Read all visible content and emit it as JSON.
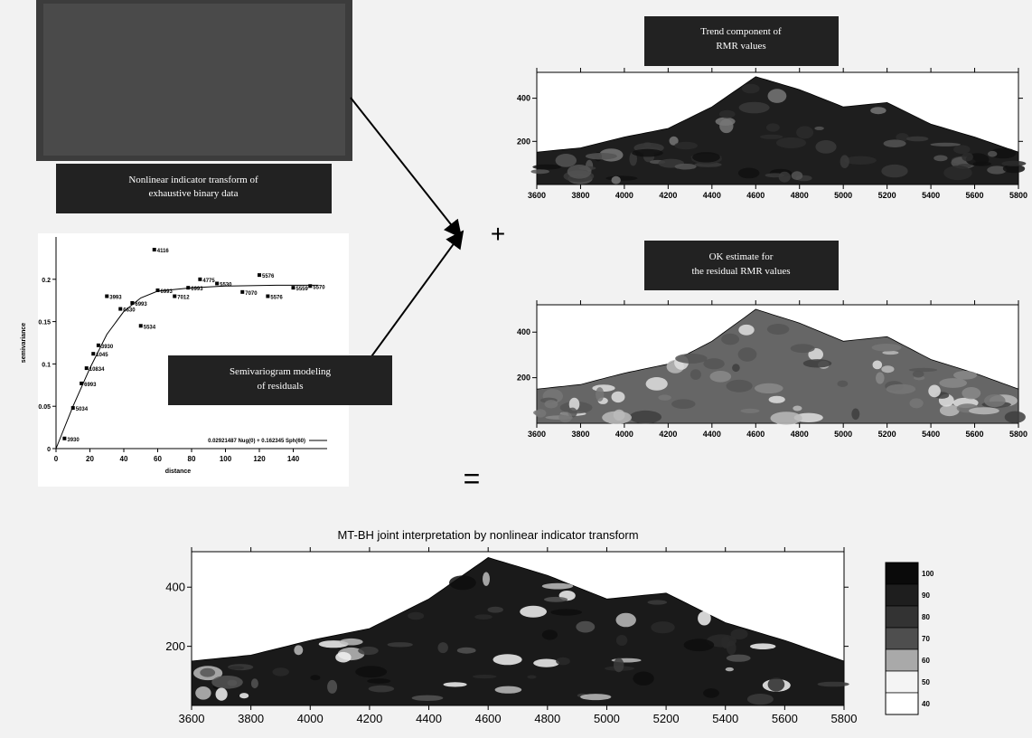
{
  "boxes": {
    "cover_upper_line": "",
    "cover_lower_line": "",
    "indicator_line1": "Nonlinear indicator transform of",
    "indicator_line2": "exhaustive binary data",
    "trend_line1": "Trend component of",
    "trend_line2": "RMR values",
    "ok_line1": "OK estimate for",
    "ok_line2": "the residual RMR values",
    "semivariogram_line1": "Semivariogram modeling",
    "semivariogram_line2": "of residuals"
  },
  "operators": {
    "plus": "+",
    "equals": "="
  },
  "colors": {
    "dark": "#1a1a1a",
    "mid": "#5e5e5e",
    "light": "#e9e9e9",
    "label_box": "#222222"
  },
  "chart_data": [
    {
      "type": "scatter",
      "panel": "semivariogram",
      "title": "",
      "xlabel": "distance",
      "ylabel": "semivariance",
      "xlim": [
        0,
        160
      ],
      "ylim": [
        0,
        0.25
      ],
      "xticks": [
        0,
        20,
        40,
        60,
        80,
        100,
        120,
        140
      ],
      "yticks": [
        0,
        0.05,
        0.1,
        0.15,
        0.2
      ],
      "ytick_labels": [
        "0",
        "0.05",
        "0.1",
        "0.15",
        "0.2"
      ],
      "points": [
        {
          "x": 5,
          "y": 0.012,
          "label": "3930"
        },
        {
          "x": 10,
          "y": 0.048,
          "label": "5034"
        },
        {
          "x": 15,
          "y": 0.077,
          "label": "6993"
        },
        {
          "x": 18,
          "y": 0.095,
          "label": "10834"
        },
        {
          "x": 22,
          "y": 0.112,
          "label": "1045"
        },
        {
          "x": 25,
          "y": 0.122,
          "label": "3930"
        },
        {
          "x": 30,
          "y": 0.18,
          "label": "3993"
        },
        {
          "x": 38,
          "y": 0.165,
          "label": "6630"
        },
        {
          "x": 45,
          "y": 0.172,
          "label": "6993"
        },
        {
          "x": 50,
          "y": 0.145,
          "label": "5534"
        },
        {
          "x": 58,
          "y": 0.235,
          "label": "4116"
        },
        {
          "x": 60,
          "y": 0.187,
          "label": "6993"
        },
        {
          "x": 70,
          "y": 0.18,
          "label": "7012"
        },
        {
          "x": 78,
          "y": 0.19,
          "label": "6993"
        },
        {
          "x": 85,
          "y": 0.2,
          "label": "4775"
        },
        {
          "x": 95,
          "y": 0.195,
          "label": "5530"
        },
        {
          "x": 110,
          "y": 0.185,
          "label": "7070"
        },
        {
          "x": 120,
          "y": 0.205,
          "label": "5576"
        },
        {
          "x": 125,
          "y": 0.18,
          "label": "5576"
        },
        {
          "x": 140,
          "y": 0.19,
          "label": "5559"
        },
        {
          "x": 150,
          "y": 0.192,
          "label": "5570"
        }
      ],
      "model_curve": [
        [
          0,
          0
        ],
        [
          10,
          0.05
        ],
        [
          20,
          0.095
        ],
        [
          30,
          0.135
        ],
        [
          40,
          0.162
        ],
        [
          50,
          0.178
        ],
        [
          60,
          0.186
        ],
        [
          80,
          0.19
        ],
        [
          100,
          0.192
        ],
        [
          130,
          0.193
        ],
        [
          155,
          0.193
        ]
      ],
      "legend_text": "0.02921487 Nug(0) + 0.162345 Sph(60)",
      "legend_position": "bottom-right"
    },
    {
      "type": "heatmap",
      "panel": "trend-component",
      "xlim": [
        3600,
        5800
      ],
      "xticks": [
        3600,
        3800,
        4000,
        4200,
        4400,
        4600,
        4800,
        5000,
        5200,
        5400,
        5600,
        5800
      ],
      "yticks": [
        200,
        400
      ],
      "ylim": [
        0,
        520
      ],
      "shading": "dark"
    },
    {
      "type": "heatmap",
      "panel": "ok-residual-estimate",
      "xlim": [
        3600,
        5800
      ],
      "xticks": [
        3600,
        3800,
        4000,
        4200,
        4400,
        4600,
        4800,
        5000,
        5200,
        5400,
        5600,
        5800
      ],
      "yticks": [
        200,
        400
      ],
      "ylim": [
        0,
        520
      ],
      "shading": "mid"
    },
    {
      "type": "heatmap",
      "panel": "joint-interpretation",
      "title": "MT-BH joint interpretation by nonlinear indicator transform",
      "xlim": [
        3600,
        5800
      ],
      "xticks": [
        3600,
        3800,
        4000,
        4200,
        4400,
        4600,
        4800,
        5000,
        5200,
        5400,
        5600,
        5800
      ],
      "yticks": [
        200,
        400
      ],
      "ylim": [
        0,
        520
      ],
      "shading": "dark",
      "colorbar": {
        "labels": [
          "100",
          "90",
          "80",
          "70",
          "60",
          "50",
          "40"
        ],
        "colors": [
          "#0a0a0a",
          "#1e1e1e",
          "#333333",
          "#4e4e4e",
          "#a9a9a9",
          "#f4f4f4",
          "#ffffff"
        ]
      }
    }
  ]
}
